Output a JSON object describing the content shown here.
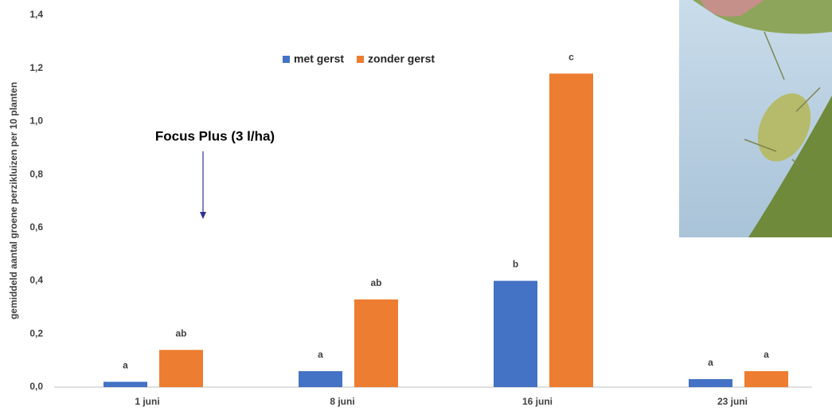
{
  "chart_data": {
    "type": "bar",
    "y_label": "gemiddeld aantal groene perzikluizen per 10 planten",
    "annotation": "Focus Plus (3 l/ha)",
    "categories": [
      "1 juni",
      "8 juni",
      "16 juni",
      "23 juni"
    ],
    "series": [
      {
        "name": "met gerst",
        "color": "#4472c4",
        "values": [
          0.02,
          0.06,
          0.4,
          0.03
        ],
        "letters": [
          "a",
          "a",
          "b",
          "a"
        ]
      },
      {
        "name": "zonder gerst",
        "color": "#ed7d31",
        "values": [
          0.14,
          0.33,
          1.18,
          0.06
        ],
        "letters": [
          "ab",
          "ab",
          "c",
          "a"
        ]
      }
    ],
    "ylim": [
      0,
      1.4
    ],
    "yticks": [
      {
        "value": 0,
        "label": "0,0"
      },
      {
        "value": 0.2,
        "label": "0,2"
      },
      {
        "value": 0.4,
        "label": "0,4"
      },
      {
        "value": 0.6,
        "label": "0,6"
      },
      {
        "value": 0.8,
        "label": "0,8"
      },
      {
        "value": 1.0,
        "label": "1,0"
      },
      {
        "value": 1.2,
        "label": "1,2"
      },
      {
        "value": 1.4,
        "label": "1,4"
      }
    ],
    "legend": "top-center"
  }
}
